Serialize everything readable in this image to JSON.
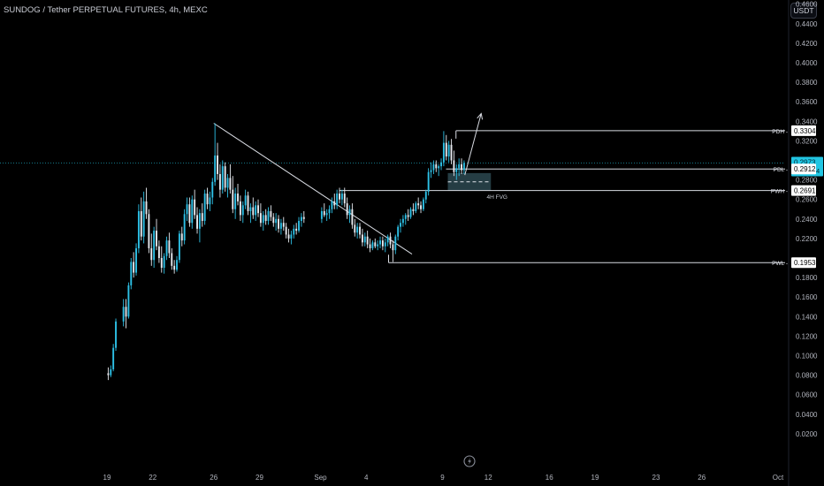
{
  "header": {
    "title": "SUNDOG / Tether PERPETUAL FUTURES, 4h, MEXC",
    "currency": "USDT"
  },
  "colors": {
    "background": "#000000",
    "bull": "#2dc0e6",
    "bear": "#e6e9ef",
    "drawing": "#d8dbe2",
    "current_price": "#22c6e3",
    "fvg_box": "#2c4850",
    "axis_text": "#b2b5be"
  },
  "icons": [
    "tradingview-logo-icon"
  ],
  "chart_data": {
    "type": "candlestick",
    "y_ticks": [
      "0.4600",
      "0.4400",
      "0.4200",
      "0.4000",
      "0.3800",
      "0.3600",
      "0.3400",
      "0.3200",
      "0.2800",
      "0.2600",
      "0.2400",
      "0.2200",
      "0.1800",
      "0.1600",
      "0.1400",
      "0.1200",
      "0.1000",
      "0.0800",
      "0.0600",
      "0.0400",
      "0.0200"
    ],
    "y_range": [
      0.0,
      0.47
    ],
    "x_ticks": [
      "19",
      "22",
      "26",
      "29",
      "Sep",
      "4",
      "9",
      "12",
      "16",
      "19",
      "23",
      "26",
      "Oct"
    ],
    "price_tags": [
      {
        "name": "current-price-tag",
        "price": 0.2973,
        "text": "0.2973",
        "subtext": "01:53:24",
        "style": "current"
      },
      {
        "name": "pdh-tag",
        "price": 0.3304,
        "text": "0.3304",
        "label": "PDH",
        "style": "level"
      },
      {
        "name": "pdl-tag",
        "price": 0.2912,
        "text": "0.2912",
        "label": "PDL",
        "style": "level"
      },
      {
        "name": "pwh-tag",
        "price": 0.2691,
        "text": "0.2691",
        "label": "PWH",
        "style": "level"
      },
      {
        "name": "pwl-tag",
        "price": 0.1953,
        "text": "0.1953",
        "label": "PWL",
        "style": "level"
      }
    ],
    "fvg": {
      "label": "4H FVG",
      "low": 0.269,
      "high": 0.287,
      "mid": 0.278
    },
    "trendline": {
      "from": {
        "x": "Aug 26",
        "y": 0.338
      },
      "to": {
        "x": "Sep 7",
        "y": 0.204
      }
    },
    "arrow": {
      "from": {
        "x": "Sep 10",
        "y": 0.285
      },
      "to": {
        "x": "Sep 12",
        "y": 0.348
      }
    },
    "candles": [
      {
        "d": "Aug 19",
        "o": 0.082,
        "h": 0.088,
        "l": 0.075,
        "c": 0.08
      },
      {
        "d": "Aug 19",
        "o": 0.08,
        "h": 0.09,
        "l": 0.078,
        "c": 0.086
      },
      {
        "d": "Aug 19",
        "o": 0.086,
        "h": 0.112,
        "l": 0.084,
        "c": 0.108
      },
      {
        "d": "Aug 19",
        "o": 0.108,
        "h": 0.138,
        "l": 0.105,
        "c": 0.135
      },
      {
        "d": "Aug 20",
        "o": 0.135,
        "h": 0.158,
        "l": 0.13,
        "c": 0.15
      },
      {
        "d": "Aug 20",
        "o": 0.15,
        "h": 0.158,
        "l": 0.128,
        "c": 0.14
      },
      {
        "d": "Aug 20",
        "o": 0.14,
        "h": 0.175,
        "l": 0.138,
        "c": 0.172
      },
      {
        "d": "Aug 20",
        "o": 0.172,
        "h": 0.2,
        "l": 0.168,
        "c": 0.196
      },
      {
        "d": "Aug 20",
        "o": 0.196,
        "h": 0.206,
        "l": 0.18,
        "c": 0.185
      },
      {
        "d": "Aug 20",
        "o": 0.185,
        "h": 0.215,
        "l": 0.182,
        "c": 0.21
      },
      {
        "d": "Aug 21",
        "o": 0.21,
        "h": 0.255,
        "l": 0.205,
        "c": 0.248
      },
      {
        "d": "Aug 21",
        "o": 0.248,
        "h": 0.262,
        "l": 0.218,
        "c": 0.222
      },
      {
        "d": "Aug 21",
        "o": 0.222,
        "h": 0.268,
        "l": 0.215,
        "c": 0.258
      },
      {
        "d": "Aug 21",
        "o": 0.258,
        "h": 0.272,
        "l": 0.24,
        "c": 0.245
      },
      {
        "d": "Aug 21",
        "o": 0.245,
        "h": 0.25,
        "l": 0.205,
        "c": 0.21
      },
      {
        "d": "Aug 21",
        "o": 0.21,
        "h": 0.225,
        "l": 0.192,
        "c": 0.198
      },
      {
        "d": "Aug 22",
        "o": 0.198,
        "h": 0.232,
        "l": 0.19,
        "c": 0.228
      },
      {
        "d": "Aug 22",
        "o": 0.228,
        "h": 0.24,
        "l": 0.208,
        "c": 0.212
      },
      {
        "d": "Aug 22",
        "o": 0.212,
        "h": 0.218,
        "l": 0.195,
        "c": 0.2
      },
      {
        "d": "Aug 22",
        "o": 0.2,
        "h": 0.212,
        "l": 0.185,
        "c": 0.19
      },
      {
        "d": "Aug 22",
        "o": 0.19,
        "h": 0.205,
        "l": 0.184,
        "c": 0.202
      },
      {
        "d": "Aug 22",
        "o": 0.202,
        "h": 0.222,
        "l": 0.198,
        "c": 0.218
      },
      {
        "d": "Aug 23",
        "o": 0.218,
        "h": 0.226,
        "l": 0.2,
        "c": 0.205
      },
      {
        "d": "Aug 23",
        "o": 0.205,
        "h": 0.21,
        "l": 0.188,
        "c": 0.192
      },
      {
        "d": "Aug 23",
        "o": 0.192,
        "h": 0.198,
        "l": 0.184,
        "c": 0.188
      },
      {
        "d": "Aug 23",
        "o": 0.188,
        "h": 0.202,
        "l": 0.186,
        "c": 0.198
      },
      {
        "d": "Aug 23",
        "o": 0.198,
        "h": 0.228,
        "l": 0.195,
        "c": 0.225
      },
      {
        "d": "Aug 23",
        "o": 0.225,
        "h": 0.232,
        "l": 0.212,
        "c": 0.218
      },
      {
        "d": "Aug 24",
        "o": 0.218,
        "h": 0.25,
        "l": 0.214,
        "c": 0.245
      },
      {
        "d": "Aug 24",
        "o": 0.245,
        "h": 0.262,
        "l": 0.238,
        "c": 0.255
      },
      {
        "d": "Aug 24",
        "o": 0.255,
        "h": 0.262,
        "l": 0.232,
        "c": 0.236
      },
      {
        "d": "Aug 24",
        "o": 0.236,
        "h": 0.264,
        "l": 0.23,
        "c": 0.26
      },
      {
        "d": "Aug 24",
        "o": 0.26,
        "h": 0.27,
        "l": 0.24,
        "c": 0.244
      },
      {
        "d": "Aug 24",
        "o": 0.244,
        "h": 0.252,
        "l": 0.225,
        "c": 0.23
      },
      {
        "d": "Aug 25",
        "o": 0.23,
        "h": 0.25,
        "l": 0.216,
        "c": 0.246
      },
      {
        "d": "Aug 25",
        "o": 0.246,
        "h": 0.256,
        "l": 0.232,
        "c": 0.238
      },
      {
        "d": "Aug 25",
        "o": 0.238,
        "h": 0.27,
        "l": 0.234,
        "c": 0.266
      },
      {
        "d": "Aug 25",
        "o": 0.266,
        "h": 0.272,
        "l": 0.25,
        "c": 0.255
      },
      {
        "d": "Aug 25",
        "o": 0.255,
        "h": 0.268,
        "l": 0.248,
        "c": 0.262
      },
      {
        "d": "Aug 25",
        "o": 0.262,
        "h": 0.282,
        "l": 0.255,
        "c": 0.278
      },
      {
        "d": "Aug 26",
        "o": 0.278,
        "h": 0.338,
        "l": 0.274,
        "c": 0.305
      },
      {
        "d": "Aug 26",
        "o": 0.305,
        "h": 0.318,
        "l": 0.28,
        "c": 0.286
      },
      {
        "d": "Aug 26",
        "o": 0.286,
        "h": 0.296,
        "l": 0.262,
        "c": 0.27
      },
      {
        "d": "Aug 26",
        "o": 0.27,
        "h": 0.3,
        "l": 0.266,
        "c": 0.294
      },
      {
        "d": "Aug 26",
        "o": 0.294,
        "h": 0.298,
        "l": 0.268,
        "c": 0.272
      },
      {
        "d": "Aug 26",
        "o": 0.272,
        "h": 0.286,
        "l": 0.262,
        "c": 0.282
      },
      {
        "d": "Aug 27",
        "o": 0.282,
        "h": 0.296,
        "l": 0.266,
        "c": 0.27
      },
      {
        "d": "Aug 27",
        "o": 0.27,
        "h": 0.284,
        "l": 0.246,
        "c": 0.25
      },
      {
        "d": "Aug 27",
        "o": 0.25,
        "h": 0.272,
        "l": 0.24,
        "c": 0.266
      },
      {
        "d": "Aug 27",
        "o": 0.266,
        "h": 0.276,
        "l": 0.254,
        "c": 0.258
      },
      {
        "d": "Aug 27",
        "o": 0.258,
        "h": 0.264,
        "l": 0.238,
        "c": 0.244
      },
      {
        "d": "Aug 27",
        "o": 0.244,
        "h": 0.258,
        "l": 0.236,
        "c": 0.254
      },
      {
        "d": "Aug 28",
        "o": 0.254,
        "h": 0.27,
        "l": 0.25,
        "c": 0.264
      },
      {
        "d": "Aug 28",
        "o": 0.264,
        "h": 0.268,
        "l": 0.244,
        "c": 0.248
      },
      {
        "d": "Aug 28",
        "o": 0.248,
        "h": 0.256,
        "l": 0.236,
        "c": 0.252
      },
      {
        "d": "Aug 28",
        "o": 0.252,
        "h": 0.262,
        "l": 0.24,
        "c": 0.244
      },
      {
        "d": "Aug 28",
        "o": 0.244,
        "h": 0.258,
        "l": 0.238,
        "c": 0.254
      },
      {
        "d": "Aug 28",
        "o": 0.254,
        "h": 0.26,
        "l": 0.242,
        "c": 0.246
      },
      {
        "d": "Aug 29",
        "o": 0.246,
        "h": 0.256,
        "l": 0.232,
        "c": 0.236
      },
      {
        "d": "Aug 29",
        "o": 0.236,
        "h": 0.248,
        "l": 0.228,
        "c": 0.244
      },
      {
        "d": "Aug 29",
        "o": 0.244,
        "h": 0.25,
        "l": 0.234,
        "c": 0.238
      },
      {
        "d": "Aug 29",
        "o": 0.238,
        "h": 0.252,
        "l": 0.234,
        "c": 0.248
      },
      {
        "d": "Aug 29",
        "o": 0.248,
        "h": 0.254,
        "l": 0.238,
        "c": 0.242
      },
      {
        "d": "Aug 29",
        "o": 0.242,
        "h": 0.246,
        "l": 0.232,
        "c": 0.236
      },
      {
        "d": "Aug 30",
        "o": 0.236,
        "h": 0.246,
        "l": 0.228,
        "c": 0.24
      },
      {
        "d": "Aug 30",
        "o": 0.24,
        "h": 0.244,
        "l": 0.226,
        "c": 0.23
      },
      {
        "d": "Aug 30",
        "o": 0.23,
        "h": 0.24,
        "l": 0.224,
        "c": 0.236
      },
      {
        "d": "Aug 30",
        "o": 0.236,
        "h": 0.242,
        "l": 0.228,
        "c": 0.232
      },
      {
        "d": "Aug 30",
        "o": 0.232,
        "h": 0.236,
        "l": 0.22,
        "c": 0.224
      },
      {
        "d": "Aug 30",
        "o": 0.224,
        "h": 0.23,
        "l": 0.216,
        "c": 0.22
      },
      {
        "d": "Aug 31",
        "o": 0.22,
        "h": 0.228,
        "l": 0.214,
        "c": 0.224
      },
      {
        "d": "Aug 31",
        "o": 0.224,
        "h": 0.234,
        "l": 0.22,
        "c": 0.23
      },
      {
        "d": "Aug 31",
        "o": 0.23,
        "h": 0.236,
        "l": 0.224,
        "c": 0.228
      },
      {
        "d": "Aug 31",
        "o": 0.228,
        "h": 0.242,
        "l": 0.226,
        "c": 0.238
      },
      {
        "d": "Aug 31",
        "o": 0.238,
        "h": 0.246,
        "l": 0.232,
        "c": 0.242
      },
      {
        "d": "Aug 31",
        "o": 0.242,
        "h": 0.248,
        "l": 0.236,
        "c": 0.24
      },
      {
        "d": "Sep 1",
        "o": 0.24,
        "h": 0.252,
        "l": 0.236,
        "c": 0.248
      },
      {
        "d": "Sep 1",
        "o": 0.248,
        "h": 0.256,
        "l": 0.242,
        "c": 0.244
      },
      {
        "d": "Sep 1",
        "o": 0.244,
        "h": 0.25,
        "l": 0.238,
        "c": 0.246
      },
      {
        "d": "Sep 1",
        "o": 0.246,
        "h": 0.254,
        "l": 0.24,
        "c": 0.25
      },
      {
        "d": "Sep 1",
        "o": 0.25,
        "h": 0.262,
        "l": 0.246,
        "c": 0.258
      },
      {
        "d": "Sep 1",
        "o": 0.258,
        "h": 0.266,
        "l": 0.25,
        "c": 0.254
      },
      {
        "d": "Sep 2",
        "o": 0.254,
        "h": 0.27,
        "l": 0.25,
        "c": 0.266
      },
      {
        "d": "Sep 2",
        "o": 0.266,
        "h": 0.272,
        "l": 0.256,
        "c": 0.26
      },
      {
        "d": "Sep 2",
        "o": 0.26,
        "h": 0.27,
        "l": 0.254,
        "c": 0.266
      },
      {
        "d": "Sep 2",
        "o": 0.266,
        "h": 0.272,
        "l": 0.252,
        "c": 0.256
      },
      {
        "d": "Sep 2",
        "o": 0.256,
        "h": 0.262,
        "l": 0.24,
        "c": 0.244
      },
      {
        "d": "Sep 2",
        "o": 0.244,
        "h": 0.254,
        "l": 0.236,
        "c": 0.25
      },
      {
        "d": "Sep 3",
        "o": 0.25,
        "h": 0.256,
        "l": 0.23,
        "c": 0.234
      },
      {
        "d": "Sep 3",
        "o": 0.234,
        "h": 0.24,
        "l": 0.222,
        "c": 0.226
      },
      {
        "d": "Sep 3",
        "o": 0.226,
        "h": 0.236,
        "l": 0.22,
        "c": 0.232
      },
      {
        "d": "Sep 3",
        "o": 0.232,
        "h": 0.236,
        "l": 0.22,
        "c": 0.224
      },
      {
        "d": "Sep 3",
        "o": 0.224,
        "h": 0.23,
        "l": 0.212,
        "c": 0.216
      },
      {
        "d": "Sep 3",
        "o": 0.216,
        "h": 0.226,
        "l": 0.212,
        "c": 0.222
      },
      {
        "d": "Sep 4",
        "o": 0.222,
        "h": 0.228,
        "l": 0.21,
        "c": 0.214
      },
      {
        "d": "Sep 4",
        "o": 0.214,
        "h": 0.22,
        "l": 0.206,
        "c": 0.21
      },
      {
        "d": "Sep 4",
        "o": 0.21,
        "h": 0.218,
        "l": 0.208,
        "c": 0.216
      },
      {
        "d": "Sep 4",
        "o": 0.216,
        "h": 0.22,
        "l": 0.21,
        "c": 0.212
      },
      {
        "d": "Sep 4",
        "o": 0.212,
        "h": 0.218,
        "l": 0.208,
        "c": 0.214
      },
      {
        "d": "Sep 4",
        "o": 0.214,
        "h": 0.222,
        "l": 0.21,
        "c": 0.218
      },
      {
        "d": "Sep 5",
        "o": 0.218,
        "h": 0.222,
        "l": 0.208,
        "c": 0.212
      },
      {
        "d": "Sep 5",
        "o": 0.212,
        "h": 0.22,
        "l": 0.206,
        "c": 0.216
      },
      {
        "d": "Sep 5",
        "o": 0.216,
        "h": 0.224,
        "l": 0.212,
        "c": 0.222
      },
      {
        "d": "Sep 5",
        "o": 0.222,
        "h": 0.226,
        "l": 0.21,
        "c": 0.214
      },
      {
        "d": "Sep 5",
        "o": 0.214,
        "h": 0.218,
        "l": 0.196,
        "c": 0.208
      },
      {
        "d": "Sep 5",
        "o": 0.208,
        "h": 0.224,
        "l": 0.204,
        "c": 0.222
      },
      {
        "d": "Sep 6",
        "o": 0.222,
        "h": 0.234,
        "l": 0.218,
        "c": 0.232
      },
      {
        "d": "Sep 6",
        "o": 0.232,
        "h": 0.24,
        "l": 0.226,
        "c": 0.236
      },
      {
        "d": "Sep 6",
        "o": 0.236,
        "h": 0.244,
        "l": 0.232,
        "c": 0.24
      },
      {
        "d": "Sep 6",
        "o": 0.24,
        "h": 0.246,
        "l": 0.234,
        "c": 0.244
      },
      {
        "d": "Sep 6",
        "o": 0.244,
        "h": 0.25,
        "l": 0.238,
        "c": 0.242
      },
      {
        "d": "Sep 6",
        "o": 0.242,
        "h": 0.252,
        "l": 0.24,
        "c": 0.25
      },
      {
        "d": "Sep 7",
        "o": 0.25,
        "h": 0.256,
        "l": 0.244,
        "c": 0.248
      },
      {
        "d": "Sep 7",
        "o": 0.248,
        "h": 0.258,
        "l": 0.246,
        "c": 0.256
      },
      {
        "d": "Sep 7",
        "o": 0.256,
        "h": 0.262,
        "l": 0.25,
        "c": 0.254
      },
      {
        "d": "Sep 7",
        "o": 0.254,
        "h": 0.258,
        "l": 0.246,
        "c": 0.25
      },
      {
        "d": "Sep 7",
        "o": 0.25,
        "h": 0.262,
        "l": 0.248,
        "c": 0.26
      },
      {
        "d": "Sep 7",
        "o": 0.26,
        "h": 0.27,
        "l": 0.256,
        "c": 0.268
      },
      {
        "d": "Sep 8",
        "o": 0.268,
        "h": 0.292,
        "l": 0.264,
        "c": 0.288
      },
      {
        "d": "Sep 8",
        "o": 0.288,
        "h": 0.298,
        "l": 0.282,
        "c": 0.29
      },
      {
        "d": "Sep 8",
        "o": 0.29,
        "h": 0.3,
        "l": 0.286,
        "c": 0.296
      },
      {
        "d": "Sep 8",
        "o": 0.296,
        "h": 0.3,
        "l": 0.288,
        "c": 0.292
      },
      {
        "d": "Sep 8",
        "o": 0.292,
        "h": 0.296,
        "l": 0.284,
        "c": 0.294
      },
      {
        "d": "Sep 8",
        "o": 0.294,
        "h": 0.302,
        "l": 0.29,
        "c": 0.298
      },
      {
        "d": "Sep 9",
        "o": 0.298,
        "h": 0.33,
        "l": 0.294,
        "c": 0.318
      },
      {
        "d": "Sep 9",
        "o": 0.318,
        "h": 0.326,
        "l": 0.3,
        "c": 0.304
      },
      {
        "d": "Sep 9",
        "o": 0.304,
        "h": 0.32,
        "l": 0.298,
        "c": 0.316
      },
      {
        "d": "Sep 9",
        "o": 0.316,
        "h": 0.322,
        "l": 0.296,
        "c": 0.3
      },
      {
        "d": "Sep 9",
        "o": 0.3,
        "h": 0.31,
        "l": 0.284,
        "c": 0.288
      },
      {
        "d": "Sep 9",
        "o": 0.288,
        "h": 0.296,
        "l": 0.28,
        "c": 0.292
      },
      {
        "d": "Sep 10",
        "o": 0.292,
        "h": 0.302,
        "l": 0.284,
        "c": 0.296
      },
      {
        "d": "Sep 10",
        "o": 0.296,
        "h": 0.302,
        "l": 0.286,
        "c": 0.29
      },
      {
        "d": "Sep 10",
        "o": 0.29,
        "h": 0.3,
        "l": 0.286,
        "c": 0.2973
      }
    ]
  }
}
